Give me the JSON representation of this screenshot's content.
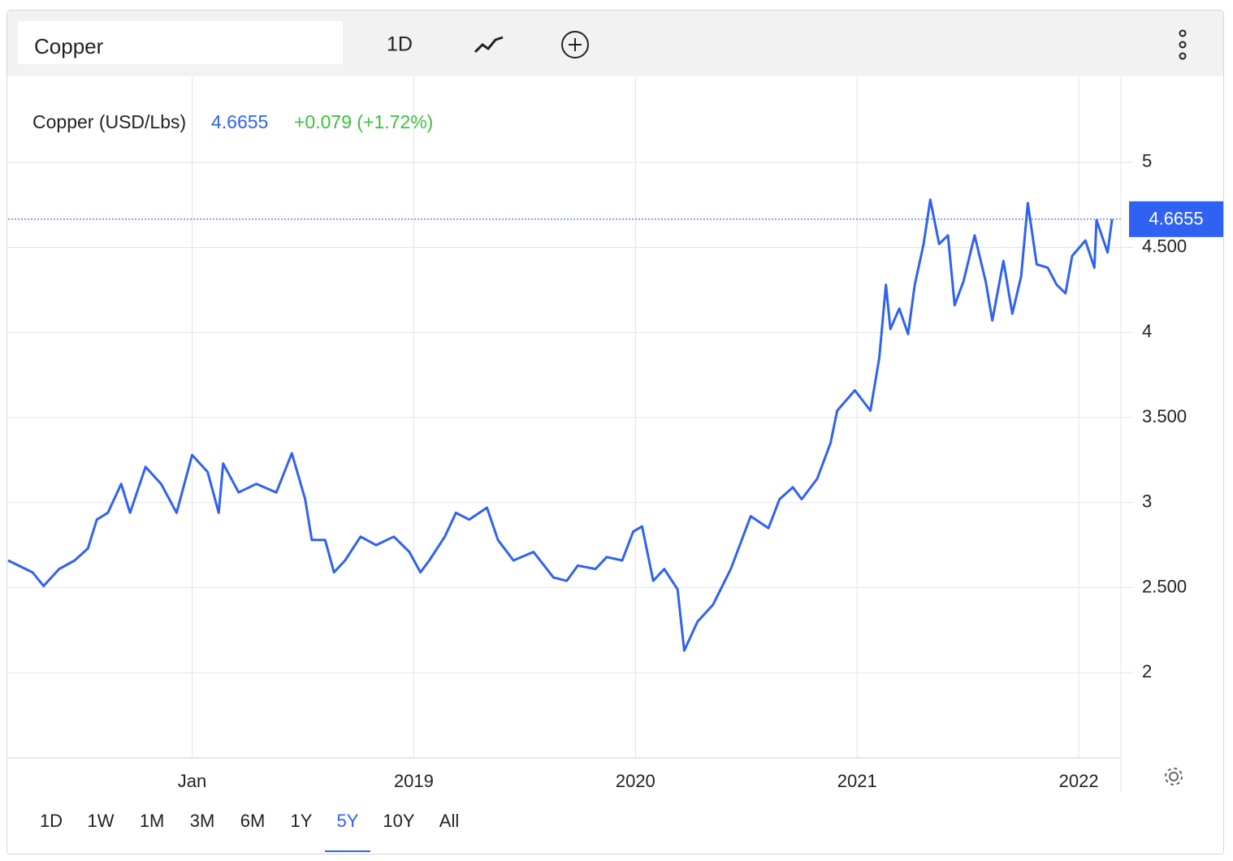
{
  "search": "Copper",
  "interval": "1D",
  "ranges": [
    "1D",
    "1W",
    "1M",
    "3M",
    "6M",
    "1Y",
    "5Y",
    "10Y",
    "All"
  ],
  "active_range": 6,
  "chart_data": {
    "type": "line",
    "title": "Copper (USD/Lbs)",
    "change": "+0.079 (+1.72%)",
    "change_color": "#3cc13c",
    "x": [
      2017.17,
      2017.28,
      2017.33,
      2017.4,
      2017.47,
      2017.53,
      2017.57,
      2017.62,
      2017.68,
      2017.72,
      2017.79,
      2017.86,
      2017.93,
      2018.0,
      2018.07,
      2018.12,
      2018.14,
      2018.21,
      2018.29,
      2018.38,
      2018.45,
      2018.51,
      2018.54,
      2018.6,
      2018.64,
      2018.69,
      2018.76,
      2018.83,
      2018.91,
      2018.98,
      2019.03,
      2019.07,
      2019.14,
      2019.19,
      2019.25,
      2019.33,
      2019.38,
      2019.45,
      2019.54,
      2019.63,
      2019.69,
      2019.74,
      2019.82,
      2019.87,
      2019.94,
      2019.99,
      2020.03,
      2020.08,
      2020.13,
      2020.19,
      2020.22,
      2020.28,
      2020.35,
      2020.43,
      2020.52,
      2020.6,
      2020.65,
      2020.71,
      2020.75,
      2020.82,
      2020.88,
      2020.91,
      2020.99,
      2021.06,
      2021.1,
      2021.13,
      2021.15,
      2021.19,
      2021.23,
      2021.26,
      2021.3,
      2021.33,
      2021.37,
      2021.41,
      2021.44,
      2021.48,
      2021.53,
      2021.58,
      2021.61,
      2021.66,
      2021.7,
      2021.74,
      2021.77,
      2021.81,
      2021.86,
      2021.9,
      2021.94,
      2021.97,
      2022.03,
      2022.07,
      2022.08,
      2022.13,
      2022.15
    ],
    "series": [
      {
        "name": "Copper",
        "color": "#2f62f2",
        "values": [
          2.66,
          2.59,
          2.51,
          2.61,
          2.66,
          2.73,
          2.9,
          2.94,
          3.11,
          2.94,
          3.21,
          3.11,
          2.94,
          3.28,
          3.18,
          2.94,
          3.23,
          3.06,
          3.11,
          3.06,
          3.29,
          3.02,
          2.78,
          2.78,
          2.59,
          2.66,
          2.8,
          2.75,
          2.8,
          2.71,
          2.59,
          2.66,
          2.8,
          2.94,
          2.9,
          2.97,
          2.78,
          2.66,
          2.71,
          2.56,
          2.54,
          2.63,
          2.61,
          2.68,
          2.66,
          2.83,
          2.86,
          2.54,
          2.61,
          2.49,
          2.13,
          2.3,
          2.4,
          2.61,
          2.92,
          2.85,
          3.02,
          3.09,
          3.02,
          3.14,
          3.35,
          3.54,
          3.66,
          3.54,
          3.85,
          4.28,
          4.02,
          4.14,
          3.99,
          4.28,
          4.52,
          4.78,
          4.52,
          4.57,
          4.16,
          4.3,
          4.57,
          4.3,
          4.07,
          4.42,
          4.11,
          4.33,
          4.76,
          4.4,
          4.38,
          4.28,
          4.23,
          4.45,
          4.54,
          4.38,
          4.66,
          4.47,
          4.6655
        ]
      }
    ],
    "xlim": [
      2017.17,
      2022.19
    ],
    "xticks": [
      {
        "value": 2018,
        "label": "Jan"
      },
      2019,
      2020,
      2021,
      2022
    ],
    "ylim": [
      1.5,
      5.5
    ],
    "yticks": [
      2,
      {
        "value": 2.5,
        "label": "2.500"
      },
      3,
      {
        "value": 3.5,
        "label": "3.500"
      },
      4,
      {
        "value": 4.5,
        "label": "4.500"
      },
      5
    ],
    "grid": true
  }
}
